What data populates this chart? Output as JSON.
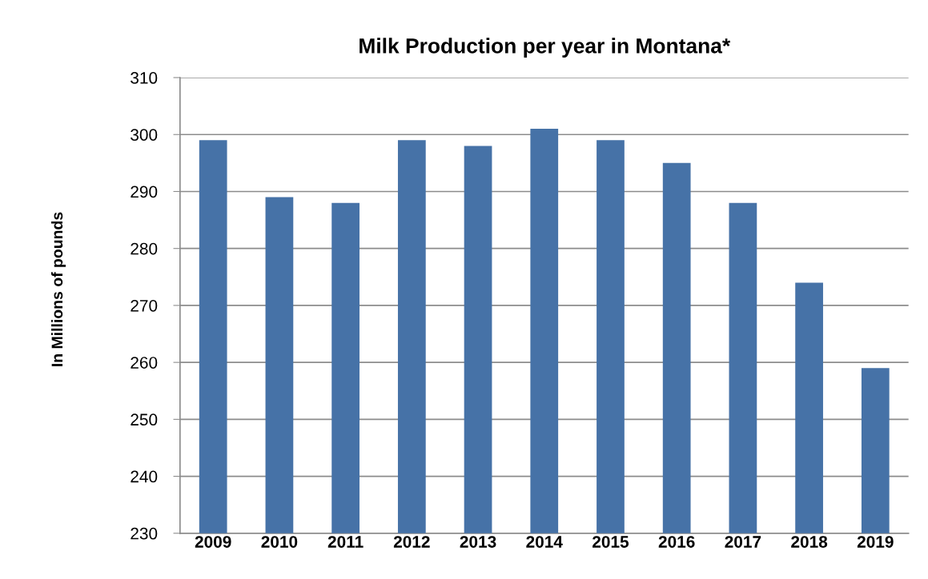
{
  "chart_data": {
    "type": "bar",
    "title": "Milk Production per year in Montana*",
    "ylabel": "In Millions of pounds",
    "categories": [
      "2009",
      "2010",
      "2011",
      "2012",
      "2013",
      "2014",
      "2015",
      "2016",
      "2017",
      "2018",
      "2019"
    ],
    "values": [
      299,
      289,
      288,
      299,
      298,
      301,
      299,
      295,
      288,
      274,
      259
    ],
    "color": "#4672a7",
    "ylim": [
      230,
      310
    ],
    "yticks": [
      230,
      240,
      250,
      260,
      270,
      280,
      290,
      300,
      310
    ],
    "grid": "y",
    "legend": false
  }
}
